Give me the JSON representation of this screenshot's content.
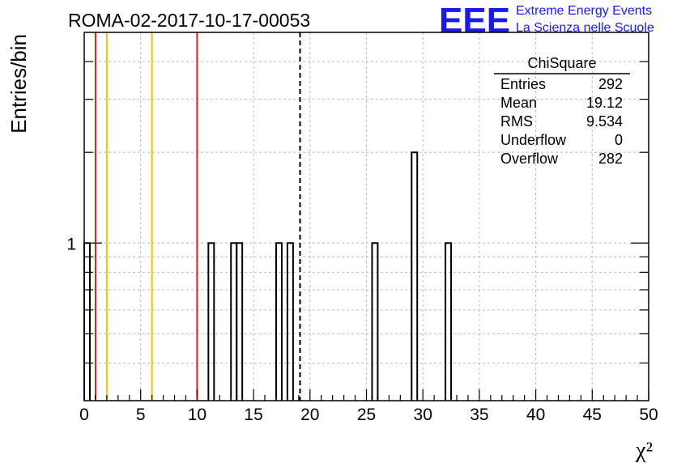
{
  "header": {
    "run_title": "ROMA-02-2017-10-17-00053",
    "logo_text": "EEE",
    "logo_line1": "Extreme Energy Events",
    "logo_line2": "La Scienza nelle Scuole"
  },
  "stats_box": {
    "title": "ChiSquare",
    "rows": [
      {
        "label": "Entries",
        "value": "292"
      },
      {
        "label": "Mean",
        "value": "19.12"
      },
      {
        "label": "RMS",
        "value": "9.534"
      },
      {
        "label": "Underflow",
        "value": "0"
      },
      {
        "label": "Overflow",
        "value": "282"
      }
    ]
  },
  "colors": {
    "red_line": "#dd2222",
    "yellow_line": "#f2c200",
    "logo_blue": "#1a1aee",
    "grid": "#bbbbbb"
  },
  "chart_data": {
    "type": "bar",
    "title": "",
    "xlabel": "χ²",
    "ylabel": "Entries/bin",
    "xlim": [
      0,
      50
    ],
    "ylim": [
      0.3,
      5
    ],
    "log_y": true,
    "grid": true,
    "bin_width": 0.5,
    "x_ticks": [
      "0",
      "5",
      "10",
      "15",
      "20",
      "25",
      "30",
      "35",
      "40",
      "45",
      "50"
    ],
    "y_tick_labels": [
      {
        "value": 1,
        "label": "1"
      }
    ],
    "bins": [
      {
        "x_low": 0.0,
        "count": 1
      },
      {
        "x_low": 11.0,
        "count": 1
      },
      {
        "x_low": 13.0,
        "count": 1
      },
      {
        "x_low": 13.5,
        "count": 1
      },
      {
        "x_low": 17.0,
        "count": 1
      },
      {
        "x_low": 18.0,
        "count": 1
      },
      {
        "x_low": 25.5,
        "count": 1
      },
      {
        "x_low": 29.0,
        "count": 2
      },
      {
        "x_low": 32.0,
        "count": 1
      }
    ],
    "vertical_lines": [
      {
        "x": 1.0,
        "color": "red"
      },
      {
        "x": 2.0,
        "color": "yellow"
      },
      {
        "x": 6.0,
        "color": "yellow"
      },
      {
        "x": 10.0,
        "color": "red"
      },
      {
        "x": 19.12,
        "color": "black",
        "style": "dashed"
      }
    ]
  }
}
